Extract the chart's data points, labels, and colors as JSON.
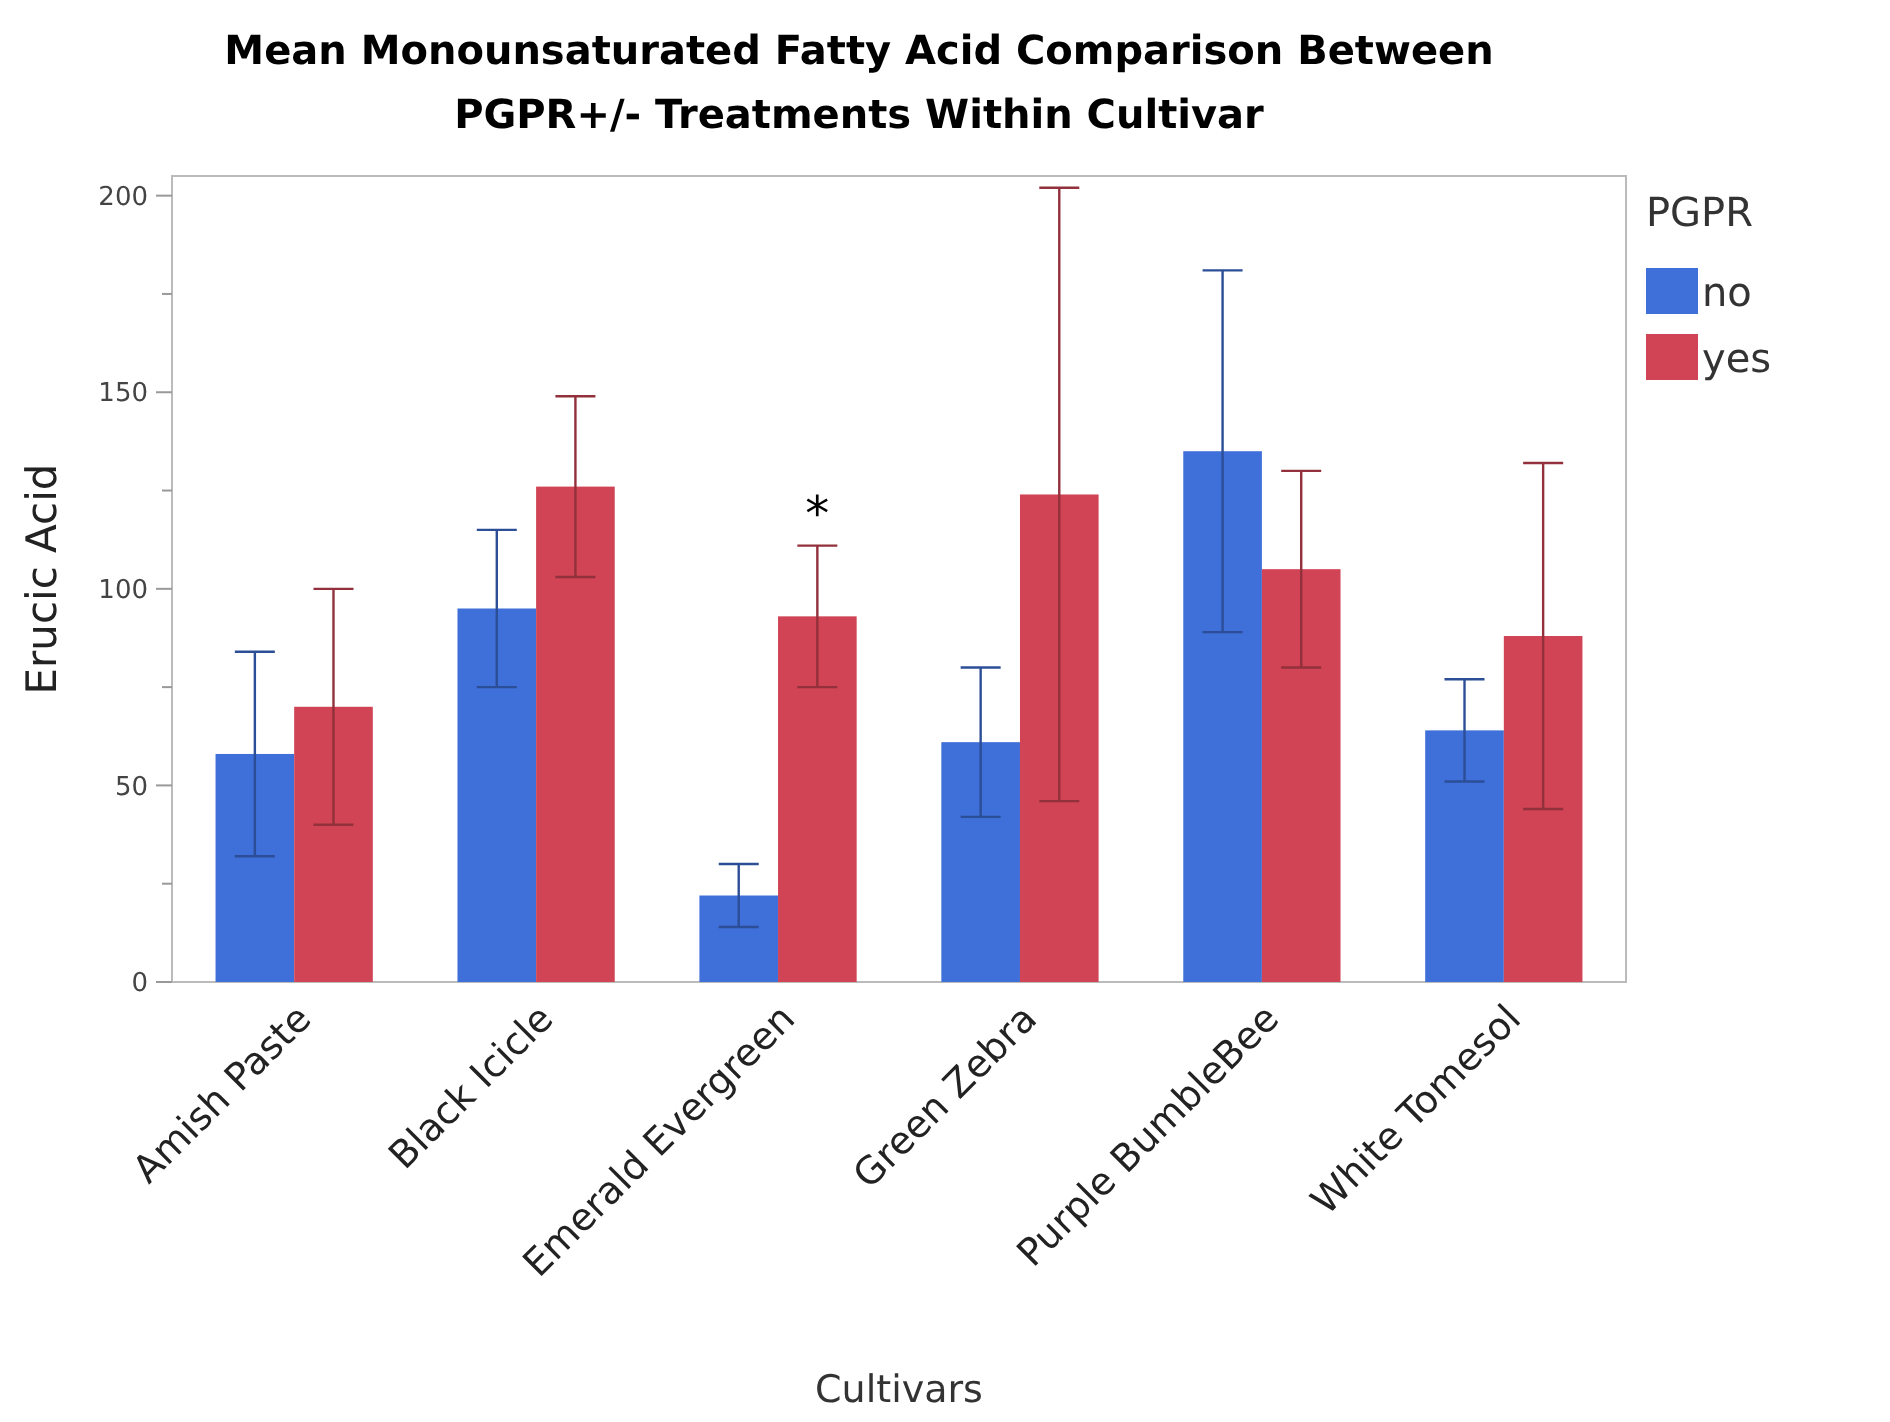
{
  "chart_data": {
    "type": "bar",
    "title": "Mean Monounsaturated Fatty Acid Comparison Between PGPR+/- Treatments Within Cultivar",
    "xlabel": "Cultivars",
    "ylabel": "Erucic Acid",
    "legend_title": "PGPR",
    "categories": [
      "Amish Paste",
      "Black Icicle",
      "Emerald Evergreen",
      "Green Zebra",
      "Purple BumbleBee",
      "White Tomesol"
    ],
    "series": [
      {
        "name": "no",
        "color": "#3f6fd8",
        "values": [
          58,
          95,
          22,
          61,
          135,
          64
        ],
        "errors": [
          26,
          20,
          8,
          19,
          46,
          13
        ]
      },
      {
        "name": "yes",
        "color": "#d04455",
        "values": [
          70,
          126,
          93,
          124,
          105,
          88
        ],
        "errors": [
          30,
          23,
          18,
          78,
          25,
          44
        ]
      }
    ],
    "ylim": [
      0,
      205
    ],
    "yticks": [
      0,
      {
        "value": 25,
        "label": null
      },
      50,
      {
        "value": 75,
        "label": null
      },
      100,
      {
        "value": 125,
        "label": null
      },
      150,
      {
        "value": 175,
        "label": null
      },
      200
    ],
    "annotations": [
      {
        "text": "*",
        "x": "Emerald Evergreen",
        "y": 93
      }
    ],
    "grid": false,
    "legend": "top right"
  }
}
